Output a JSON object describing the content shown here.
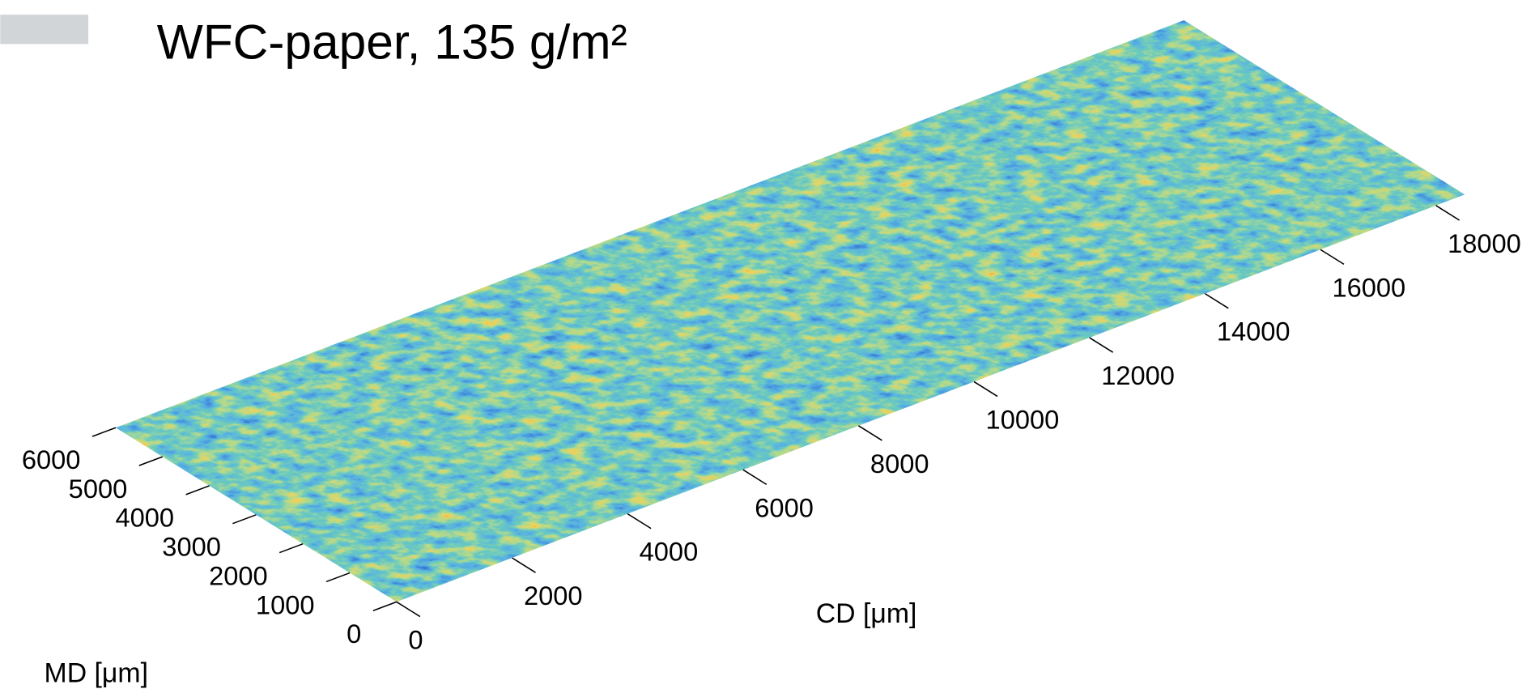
{
  "chart_data": {
    "type": "surface3d",
    "title": "WFC-paper, 135 g/m²",
    "xlabel": "CD [μm]",
    "ylabel": "MD [μm]",
    "xlim": [
      0,
      18500
    ],
    "ylim": [
      0,
      6000
    ],
    "xticks": [
      0,
      2000,
      4000,
      6000,
      8000,
      10000,
      12000,
      14000,
      16000,
      18000
    ],
    "yticks": [
      0,
      1000,
      2000,
      3000,
      4000,
      5000,
      6000
    ]
  }
}
